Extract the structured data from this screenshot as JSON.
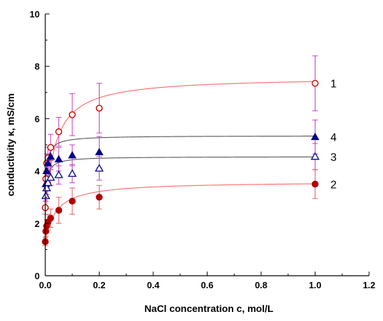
{
  "chart_data": {
    "type": "scatter",
    "xlabel": "NaCl concentration c, mol/L",
    "ylabel": "conductivity κ, mS/cm",
    "xlim": [
      0,
      1.2
    ],
    "ylim": [
      0,
      10
    ],
    "x_ticks": [
      "0.0",
      "0.2",
      "0.4",
      "0.6",
      "0.8",
      "1.0",
      "1.2"
    ],
    "y_ticks": [
      "0",
      "2",
      "4",
      "6",
      "8",
      "10"
    ],
    "grid": false,
    "series": [
      {
        "name": "1",
        "marker": "open-circle",
        "color": "#cc0000",
        "error_color": "#c040c0",
        "fit_color": "#ff6666",
        "points": [
          {
            "x": 0.0,
            "y": 2.6,
            "err": 0.25
          },
          {
            "x": 0.002,
            "y": 3.7,
            "err": 0.3
          },
          {
            "x": 0.005,
            "y": 4.3,
            "err": 0.35
          },
          {
            "x": 0.01,
            "y": 4.5,
            "err": 0.4
          },
          {
            "x": 0.02,
            "y": 4.9,
            "err": 0.5
          },
          {
            "x": 0.05,
            "y": 5.5,
            "err": 0.55
          },
          {
            "x": 0.1,
            "y": 6.15,
            "err": 0.8
          },
          {
            "x": 0.2,
            "y": 6.4,
            "err": 0.95
          },
          {
            "x": 1.0,
            "y": 7.35,
            "err": 1.05
          }
        ]
      },
      {
        "name": "4",
        "marker": "filled-triangle",
        "color": "#00008b",
        "error_color": "#c040c0",
        "fit_color": "#555555",
        "points": [
          {
            "x": 0.002,
            "y": 3.5,
            "err": 0.25
          },
          {
            "x": 0.005,
            "y": 4.0,
            "err": 0.3
          },
          {
            "x": 0.01,
            "y": 4.3,
            "err": 0.35
          },
          {
            "x": 0.02,
            "y": 4.55,
            "err": 0.4
          },
          {
            "x": 0.05,
            "y": 4.45,
            "err": 0.45
          },
          {
            "x": 0.1,
            "y": 4.6,
            "err": 0.4
          },
          {
            "x": 0.2,
            "y": 4.72,
            "err": 0.6
          },
          {
            "x": 1.0,
            "y": 5.3,
            "err": 0.65
          }
        ]
      },
      {
        "name": "3",
        "marker": "open-triangle",
        "color": "#00008b",
        "error_color": "#c040c0",
        "fit_color": "#555555",
        "points": [
          {
            "x": 0.002,
            "y": 3.05,
            "err": 0.2
          },
          {
            "x": 0.005,
            "y": 3.35,
            "err": 0.25
          },
          {
            "x": 0.01,
            "y": 3.55,
            "err": 0.3
          },
          {
            "x": 0.02,
            "y": 3.75,
            "err": 0.3
          },
          {
            "x": 0.05,
            "y": 3.85,
            "err": 0.35
          },
          {
            "x": 0.1,
            "y": 3.9,
            "err": 0.35
          },
          {
            "x": 0.2,
            "y": 4.1,
            "err": 0.45
          },
          {
            "x": 1.0,
            "y": 4.55,
            "err": 0.5
          }
        ]
      },
      {
        "name": "2",
        "marker": "filled-circle",
        "color": "#b00000",
        "error_color": "#e06060",
        "fit_color": "#ff6666",
        "points": [
          {
            "x": 0.0,
            "y": 1.3,
            "err": 0.15
          },
          {
            "x": 0.002,
            "y": 1.7,
            "err": 0.2
          },
          {
            "x": 0.005,
            "y": 1.9,
            "err": 0.25
          },
          {
            "x": 0.01,
            "y": 2.05,
            "err": 0.3
          },
          {
            "x": 0.02,
            "y": 2.2,
            "err": 0.35
          },
          {
            "x": 0.05,
            "y": 2.5,
            "err": 0.5
          },
          {
            "x": 0.1,
            "y": 2.85,
            "err": 0.5
          },
          {
            "x": 0.2,
            "y": 3.0,
            "err": 0.45
          },
          {
            "x": 1.0,
            "y": 3.5,
            "err": 0.55
          }
        ]
      }
    ],
    "fits": [
      {
        "series": "1",
        "y0": 2.2,
        "a": 5.4,
        "b": 0.035,
        "color": "#ff6666"
      },
      {
        "series": "4",
        "y0": 3.3,
        "a": 2.05,
        "b": 0.008,
        "color": "#555555"
      },
      {
        "series": "3",
        "y0": 2.9,
        "a": 1.65,
        "b": 0.008,
        "color": "#555555"
      },
      {
        "series": "2",
        "y0": 1.3,
        "a": 2.3,
        "b": 0.04,
        "color": "#ff6666"
      }
    ]
  }
}
